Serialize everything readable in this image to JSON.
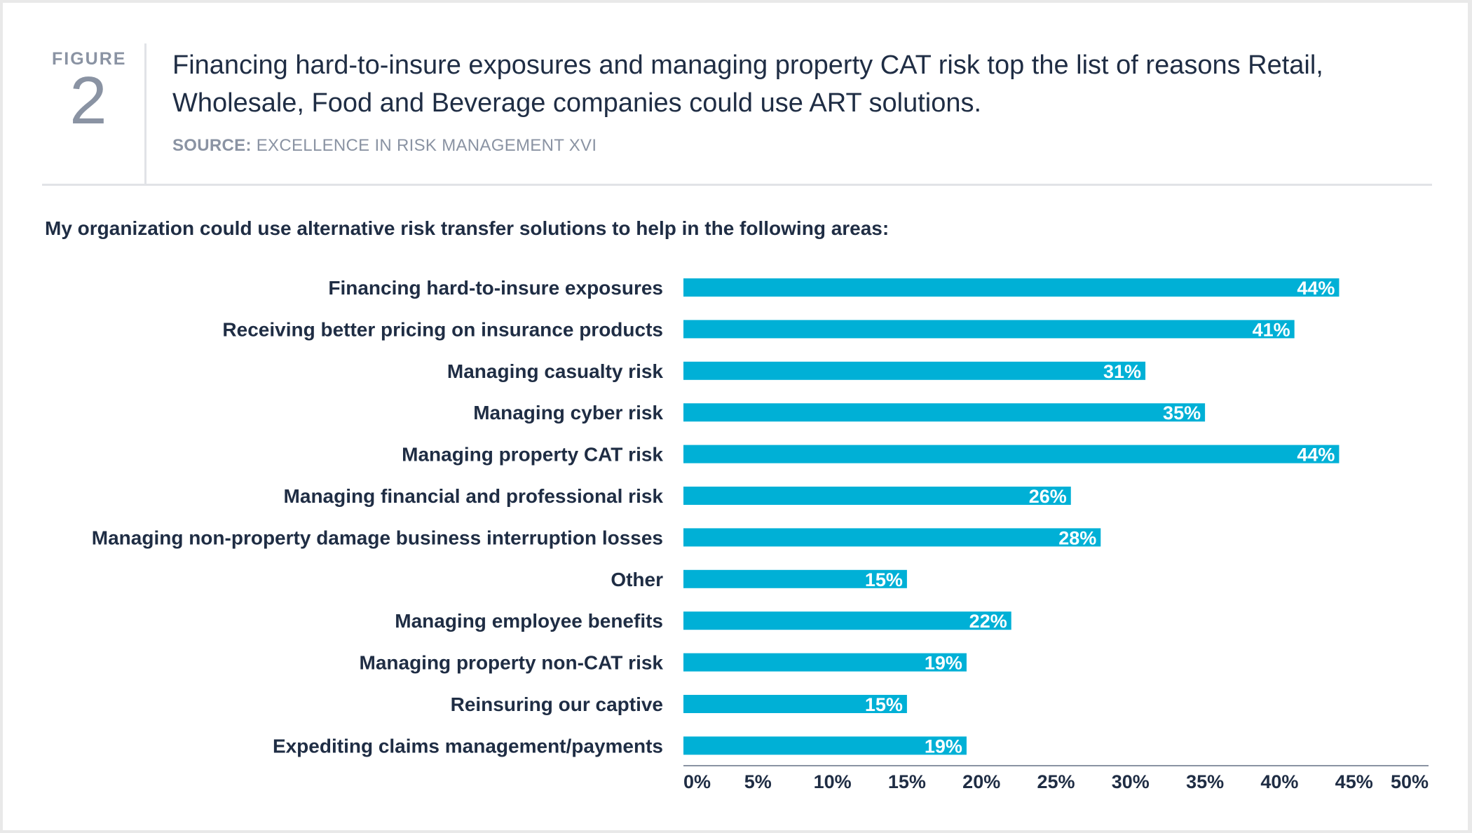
{
  "figure": {
    "label": "FIGURE",
    "number": "2",
    "headline": "Financing hard-to-insure exposures and managing property CAT risk top the list of reasons Retail, Wholesale, Food and Beverage companies could use ART solutions.",
    "source_label": "SOURCE:",
    "source_text": "EXCELLENCE IN RISK MANAGEMENT XVI"
  },
  "question": "My organization could use alternative risk transfer solutions to help in the following areas:",
  "colors": {
    "bar": "#00b0d6",
    "text": "#1f2d44",
    "muted": "#8a93a3"
  },
  "chart_data": {
    "type": "bar",
    "orientation": "horizontal",
    "categories": [
      "Financing hard-to-insure exposures",
      "Receiving better pricing on insurance products",
      "Managing casualty risk",
      "Managing cyber risk",
      "Managing property CAT risk",
      "Managing financial and professional risk",
      "Managing non-property damage business interruption losses",
      "Other",
      "Managing employee benefits",
      "Managing property non-CAT risk",
      "Reinsuring our captive",
      "Expediting claims management/payments"
    ],
    "values": [
      44,
      41,
      31,
      35,
      44,
      26,
      28,
      15,
      22,
      19,
      15,
      19
    ],
    "value_labels": [
      "44%",
      "41%",
      "31%",
      "35%",
      "44%",
      "26%",
      "28%",
      "15%",
      "22%",
      "19%",
      "15%",
      "19%"
    ],
    "xlim": [
      0,
      50
    ],
    "x_ticks": [
      "0%",
      "5%",
      "10%",
      "15%",
      "20%",
      "25%",
      "30%",
      "35%",
      "40%",
      "45%",
      "50%"
    ],
    "grid": false,
    "legend": "none"
  }
}
